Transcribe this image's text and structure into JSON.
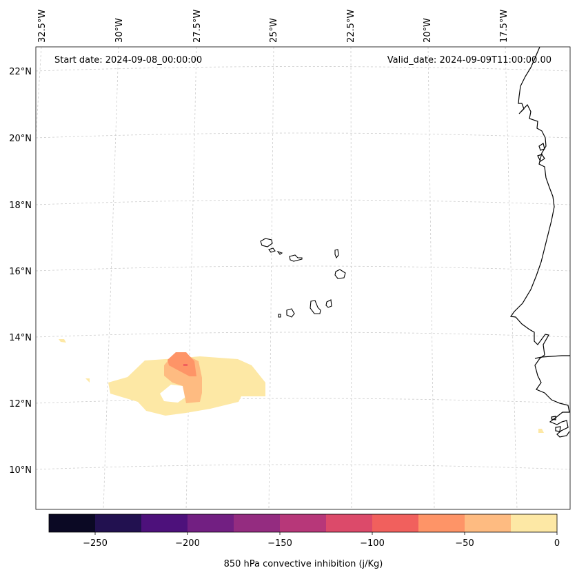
{
  "header": {
    "start_date": "Start date: 2024-09-08_00:00:00",
    "valid_date": "Valid_date: 2024-09-09T11:00:00.00"
  },
  "longitude_labels": [
    "32.5°W",
    "30°W",
    "27.5°W",
    "25°W",
    "22.5°W",
    "20°W",
    "17.5°W"
  ],
  "latitude_labels": [
    "22°N",
    "20°N",
    "18°N",
    "16°N",
    "14°N",
    "12°N",
    "10°N"
  ],
  "colorbar": {
    "label": "850 hPa convective inhibition (j/Kg)",
    "tick_labels": [
      "−250",
      "−200",
      "−150",
      "−100",
      "−50",
      "0"
    ],
    "range": [
      -275,
      0
    ],
    "step": 25,
    "colors": [
      "#0b0924",
      "#221150",
      "#4d117b",
      "#721f82",
      "#942c80",
      "#b73779",
      "#dc4a6a",
      "#f1605d",
      "#fe9467",
      "#febb81",
      "#fde8a5"
    ]
  },
  "colors": {
    "coastline": "#000000",
    "gridline": "#cccccc",
    "cin_0_to_25": "#fde8a5",
    "cin_25_to_50": "#febb81",
    "cin_50_to_75": "#fe9467",
    "cin_75_to_100": "#f1605d"
  }
}
